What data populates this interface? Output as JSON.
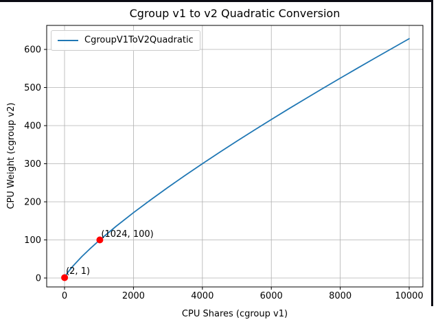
{
  "window": {
    "border_color": "#0b0b13"
  },
  "chart_data": {
    "type": "line",
    "title": "Cgroup v1 to v2 Quadratic Conversion",
    "xlabel": "CPU Shares (cgroup v1)",
    "ylabel": "CPU Weight (cgroup v2)",
    "grid": true,
    "legend": {
      "position": "upper left",
      "entries": [
        "CgroupV1ToV2Quadratic"
      ]
    },
    "xlim": [
      -518,
      10398
    ],
    "ylim": [
      -23.4,
      663.1
    ],
    "x_ticks": [
      0,
      2000,
      4000,
      6000,
      8000,
      10000
    ],
    "x_tick_labels": [
      "0",
      "2000",
      "4000",
      "6000",
      "8000",
      "10000"
    ],
    "y_ticks": [
      0,
      100,
      200,
      300,
      400,
      500,
      600
    ],
    "y_tick_labels": [
      "0",
      "100",
      "200",
      "300",
      "400",
      "500",
      "600"
    ],
    "series": [
      {
        "name": "CgroupV1ToV2Quadratic",
        "color": "#1f77b4",
        "x": [
          2,
          50,
          100,
          250,
          500,
          750,
          1024,
          1500,
          2000,
          2500,
          3000,
          3500,
          4000,
          4500,
          5000,
          5500,
          6000,
          6500,
          7000,
          7500,
          8000,
          8500,
          9000,
          9500,
          10000
        ],
        "y": [
          1,
          8.8,
          15.3,
          32.1,
          56.1,
          77.8,
          100,
          136,
          171.5,
          205.3,
          237.9,
          269.4,
          300.1,
          330,
          359.3,
          387.9,
          416.1,
          443.8,
          471.1,
          498,
          524.6,
          550.8,
          576.8,
          602.5,
          628.1
        ]
      }
    ],
    "annotated_points": [
      {
        "x": 2,
        "y": 1,
        "label": "(2, 1)",
        "color": "#ff0000"
      },
      {
        "x": 1024,
        "y": 100,
        "label": "(1024, 100)",
        "color": "#ff0000"
      }
    ],
    "colors": {
      "grid": "#b0b0b0",
      "spine": "#000000",
      "legend_border": "#cccccc"
    }
  }
}
